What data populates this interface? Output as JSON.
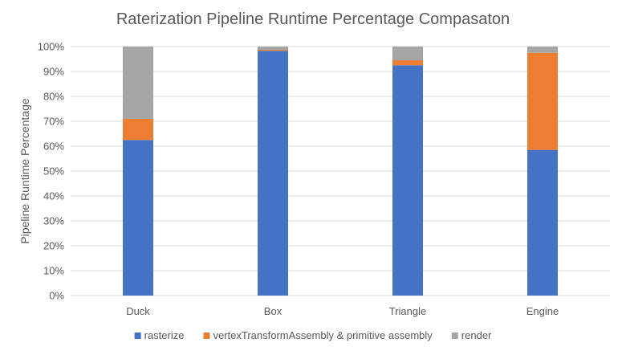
{
  "chart_data": {
    "type": "bar",
    "stacked": true,
    "title": "Raterization Pipeline Runtime Percentage Compasaton",
    "xlabel": "",
    "ylabel": "Pipeline Runtime Percentage",
    "categories": [
      "Duck",
      "Box",
      "Triangle",
      "Engine"
    ],
    "ylim": [
      0,
      100
    ],
    "yticks": [
      "0%",
      "10%",
      "20%",
      "30%",
      "40%",
      "50%",
      "60%",
      "70%",
      "80%",
      "90%",
      "100%"
    ],
    "grid": true,
    "legend_position": "bottom",
    "series": [
      {
        "name": "rasterize",
        "color": "#4472c4",
        "values": [
          62.5,
          98.3,
          92.5,
          58.5
        ]
      },
      {
        "name": "vertexTransformAssembly & primitive assembly",
        "color": "#ed7d31",
        "values": [
          8.5,
          0.4,
          2.0,
          39.0
        ]
      },
      {
        "name": "render",
        "color": "#a5a5a5",
        "values": [
          29.0,
          1.3,
          5.5,
          2.5
        ]
      }
    ]
  }
}
